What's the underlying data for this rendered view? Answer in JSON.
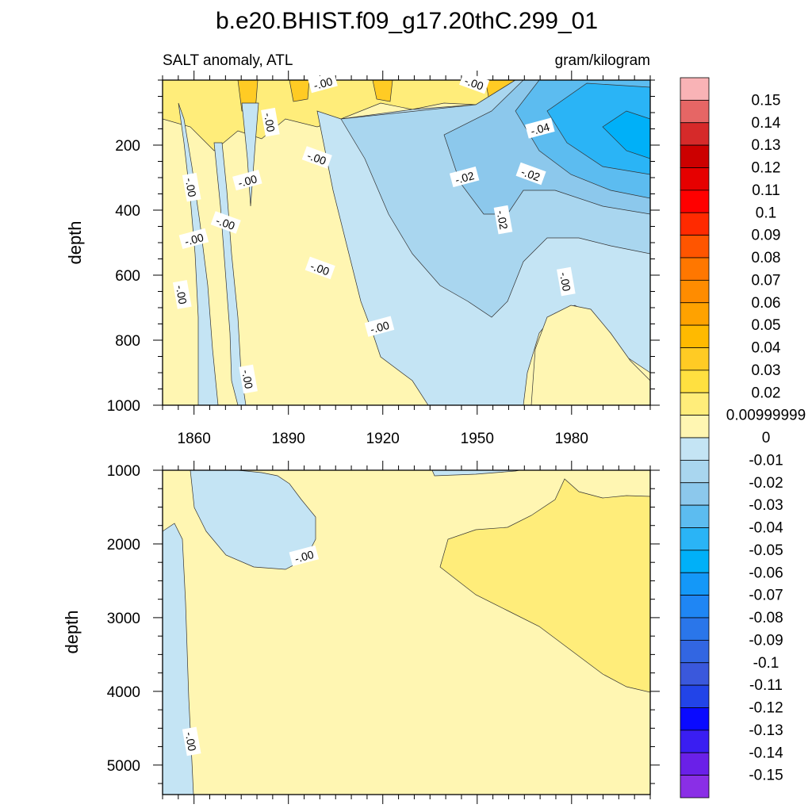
{
  "chart_data": {
    "type": "heatmap",
    "title": "b.e20.BHIST.f09_g17.20thC.299_01",
    "variable_label": "SALT anomaly, ATL",
    "units_label": "gram/kilogram",
    "colorbar": {
      "labels": [
        "0.15",
        "0.14",
        "0.13",
        "0.12",
        "0.11",
        "0.1",
        "0.09",
        "0.08",
        "0.07",
        "0.06",
        "0.05",
        "0.04",
        "0.03",
        "0.02",
        "0.00999999",
        "0",
        "-0.01",
        "-0.02",
        "-0.03",
        "-0.04",
        "-0.05",
        "-0.06",
        "-0.07",
        "-0.08",
        "-0.09",
        "-0.1",
        "-0.11",
        "-0.12",
        "-0.13",
        "-0.14",
        "-0.15"
      ],
      "colors": [
        "#f9b3b6",
        "#e66665",
        "#d62a2a",
        "#cc0000",
        "#e60000",
        "#ff0000",
        "#ff2a00",
        "#ff5500",
        "#ff7700",
        "#ff8c00",
        "#ffa200",
        "#ffba00",
        "#ffcb24",
        "#ffe040",
        "#ffed7a",
        "#fff6b2",
        "#c4e4f4",
        "#a9d6ef",
        "#8cc8ec",
        "#5cbcf0",
        "#2ab4f6",
        "#00b0f8",
        "#1498f8",
        "#1f86f4",
        "#2a76ea",
        "#3266e2",
        "#3a58dc",
        "#2244e8",
        "#0a0aff",
        "#3a1ef2",
        "#6a20e8",
        "#8a2fe6"
      ]
    },
    "panels": [
      {
        "name": "upper",
        "ylabel": "depth",
        "ylim": [
          0,
          1000
        ],
        "y_reversed": true,
        "yticks": [
          200,
          400,
          600,
          800,
          1000
        ],
        "xlim": [
          1850,
          2005
        ],
        "xticks": [
          1860,
          1890,
          1920,
          1950,
          1980
        ],
        "contour_labels": [
          {
            "text": "-.00",
            "x": 1901,
            "y": 10
          },
          {
            "text": "-.00",
            "x": 1884,
            "y": 130
          },
          {
            "text": "-.00",
            "x": 1899,
            "y": 240
          },
          {
            "text": "-.00",
            "x": 1877,
            "y": 310
          },
          {
            "text": "-.00",
            "x": 1859,
            "y": 330
          },
          {
            "text": "-.00",
            "x": 1870,
            "y": 440
          },
          {
            "text": "-.00",
            "x": 1860,
            "y": 490
          },
          {
            "text": "-.00",
            "x": 1856,
            "y": 660
          },
          {
            "text": "-.00",
            "x": 1900,
            "y": 580
          },
          {
            "text": "-.00",
            "x": 1919,
            "y": 760
          },
          {
            "text": "-.00",
            "x": 1877,
            "y": 920
          },
          {
            "text": "-.00",
            "x": 1949,
            "y": 10
          },
          {
            "text": "-.02",
            "x": 1946,
            "y": 300
          },
          {
            "text": "-.02",
            "x": 1958,
            "y": 430
          },
          {
            "text": "-.02",
            "x": 1967,
            "y": 290
          },
          {
            "text": "-.04",
            "x": 1970,
            "y": 150
          },
          {
            "text": "-.00",
            "x": 1978,
            "y": 620
          }
        ]
      },
      {
        "name": "lower",
        "ylabel": "depth",
        "ylim": [
          1000,
          5400
        ],
        "y_reversed": true,
        "yticks": [
          1000,
          2000,
          3000,
          4000,
          5000
        ],
        "xlim": [
          1850,
          2005
        ],
        "xticks": [
          1860,
          1890,
          1920,
          1950,
          1980
        ],
        "contour_labels": [
          {
            "text": "-.00",
            "x": 1895,
            "y": 2170
          },
          {
            "text": "-.00",
            "x": 1859,
            "y": 4680
          }
        ]
      }
    ]
  }
}
